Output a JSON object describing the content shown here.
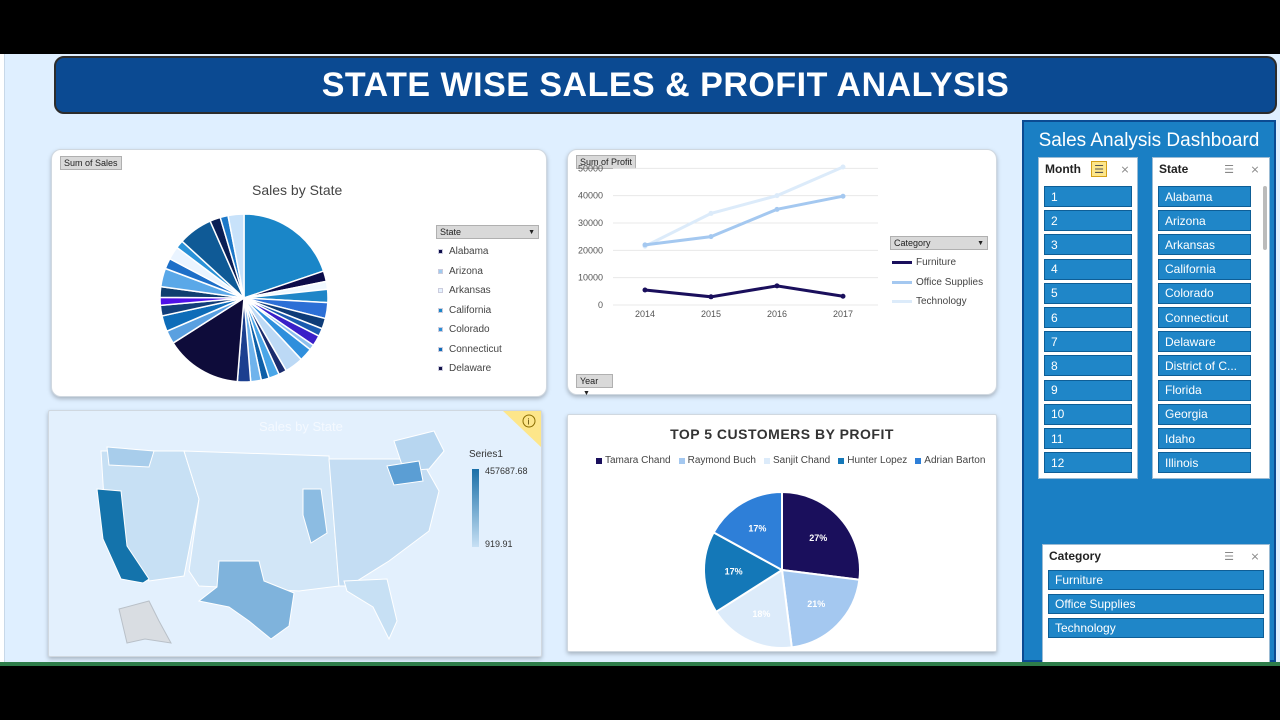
{
  "title": "STATE WISE SALES & PROFIT ANALYSIS",
  "colors": {
    "banner": "#0b4a92",
    "panel": "#1a7fc4",
    "slicer_item": "#1f86c8",
    "sheet": "#dfefff"
  },
  "sales_card": {
    "field_button": "Sum of Sales",
    "legend_field": "State",
    "legend_arrow_icon": "dropdown-arrow-icon"
  },
  "profit_card": {
    "field_button": "Sum of Profit",
    "year_button": "Year",
    "legend_field": "Category"
  },
  "map_card": {
    "title": "Sales by State",
    "legend_series": "Series1",
    "legend_max": "457687.68",
    "legend_min": "919.91",
    "info_icon": "info-icon"
  },
  "customers_card": {},
  "panel": {
    "title": "Sales Analysis Dashboard",
    "month_slicer": {
      "header": "Month",
      "items": [
        "1",
        "2",
        "3",
        "4",
        "5",
        "6",
        "7",
        "8",
        "9",
        "10",
        "11",
        "12"
      ]
    },
    "state_slicer": {
      "header": "State",
      "items": [
        "Alabama",
        "Arizona",
        "Arkansas",
        "California",
        "Colorado",
        "Connecticut",
        "Delaware",
        "District of C...",
        "Florida",
        "Georgia",
        "Idaho",
        "Illinois"
      ]
    },
    "category_slicer": {
      "header": "Category",
      "items": [
        "Furniture",
        "Office Supplies",
        "Technology"
      ]
    },
    "multi_select_icon": "multi-select-icon",
    "clear_filter_icon": "clear-filter-icon"
  },
  "chart_data": [
    {
      "type": "pie",
      "title": "Sales by State",
      "legend_title": "State",
      "legend": [
        "Alabama",
        "Arizona",
        "Arkansas",
        "California",
        "Colorado",
        "Connecticut",
        "Delaware"
      ],
      "legend_colors": [
        "#0c0c4a",
        "#9ecbf0",
        "#e4f2ff",
        "#1a86c8",
        "#2c8fd6",
        "#0e6cb8",
        "#13124a"
      ],
      "values": [
        19.5,
        2,
        1.5,
        2.5,
        3,
        2,
        1.5,
        2,
        1,
        2.5,
        3.5,
        1.5,
        2,
        1.5,
        2,
        2.5,
        14.5,
        2.5,
        3,
        2,
        1.5,
        2,
        3.5,
        2,
        2.5,
        1.5,
        6.5,
        2,
        1.5,
        3
      ],
      "slice_colors": [
        "#1a86c8",
        "#0c0c4a",
        "#f0f8ff",
        "#1f86c8",
        "#2c6fd6",
        "#0e3c78",
        "#1a5bb0",
        "#3a1fc8",
        "#8ec0ee",
        "#2f8fdc",
        "#bcd9f5",
        "#1a2c6e",
        "#4aa6e8",
        "#0d5fa8",
        "#6fb3ec",
        "#1b3f8f",
        "#0e0c3a",
        "#5aa0e0",
        "#0e6cb8",
        "#123e7a",
        "#4f10e8",
        "#0f3f70",
        "#5aa8e8",
        "#1d6fc8",
        "#eaf4ff",
        "#2a92d8",
        "#0f5a96",
        "#0a1f55",
        "#1c78c8",
        "#c8e2fa"
      ]
    },
    {
      "type": "line",
      "x": [
        2014,
        2015,
        2016,
        2017
      ],
      "ylim": [
        0,
        60000
      ],
      "yticks": [
        0,
        10000,
        20000,
        30000,
        40000,
        50000,
        60000
      ],
      "legend_title": "Category",
      "series": [
        {
          "name": "Furniture",
          "values": [
            5500,
            3000,
            7000,
            3200
          ],
          "color": "#1a0f5c"
        },
        {
          "name": "Office Supplies",
          "values": [
            22000,
            25000,
            35000,
            39800
          ],
          "color": "#a4c8f0"
        },
        {
          "name": "Technology",
          "values": [
            21500,
            33500,
            40000,
            50500
          ],
          "color": "#dcebfa"
        }
      ],
      "grid": true
    },
    {
      "type": "pie",
      "title": "TOP 5 CUSTOMERS BY PROFIT",
      "categories": [
        "Tamara Chand",
        "Raymond Buch",
        "Sanjit Chand",
        "Hunter Lopez",
        "Adrian Barton"
      ],
      "values": [
        27,
        21,
        18,
        17,
        17
      ],
      "labels": [
        "27%",
        "21%",
        "18%",
        "17%",
        "17%"
      ],
      "colors": [
        "#1a0f5c",
        "#a4c8f0",
        "#dcebfa",
        "#1478b8",
        "#2e7fd8"
      ],
      "legend_position": "top"
    }
  ]
}
